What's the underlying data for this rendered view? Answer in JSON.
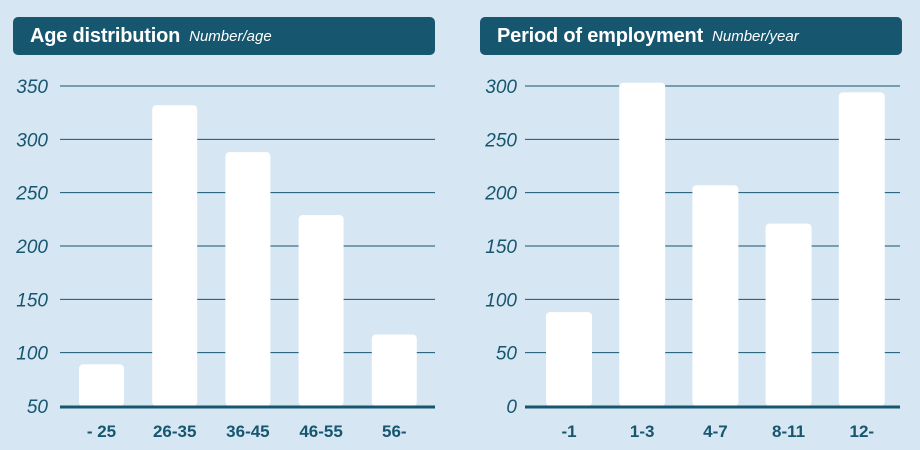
{
  "chart_data": [
    {
      "type": "bar",
      "title": "Age distribution",
      "subtitle": "Number/age",
      "categories": [
        "- 25",
        "26-35",
        "36-45",
        "46-55",
        "56-"
      ],
      "values": [
        89,
        332,
        288,
        229,
        117
      ],
      "ylim": [
        50,
        350
      ],
      "yticks": [
        50,
        100,
        150,
        200,
        250,
        300,
        350
      ],
      "grid": true,
      "bar_color": "#ffffff",
      "accent": "#16566f"
    },
    {
      "type": "bar",
      "title": "Period of employment",
      "subtitle": "Number/year",
      "categories": [
        "-1",
        "1-3",
        "4-7",
        "8-11",
        "12-"
      ],
      "values": [
        88,
        303,
        207,
        171,
        294
      ],
      "ylim": [
        0,
        300
      ],
      "yticks": [
        0,
        50,
        100,
        150,
        200,
        250,
        300
      ],
      "grid": true,
      "bar_color": "#ffffff",
      "accent": "#16566f"
    }
  ]
}
